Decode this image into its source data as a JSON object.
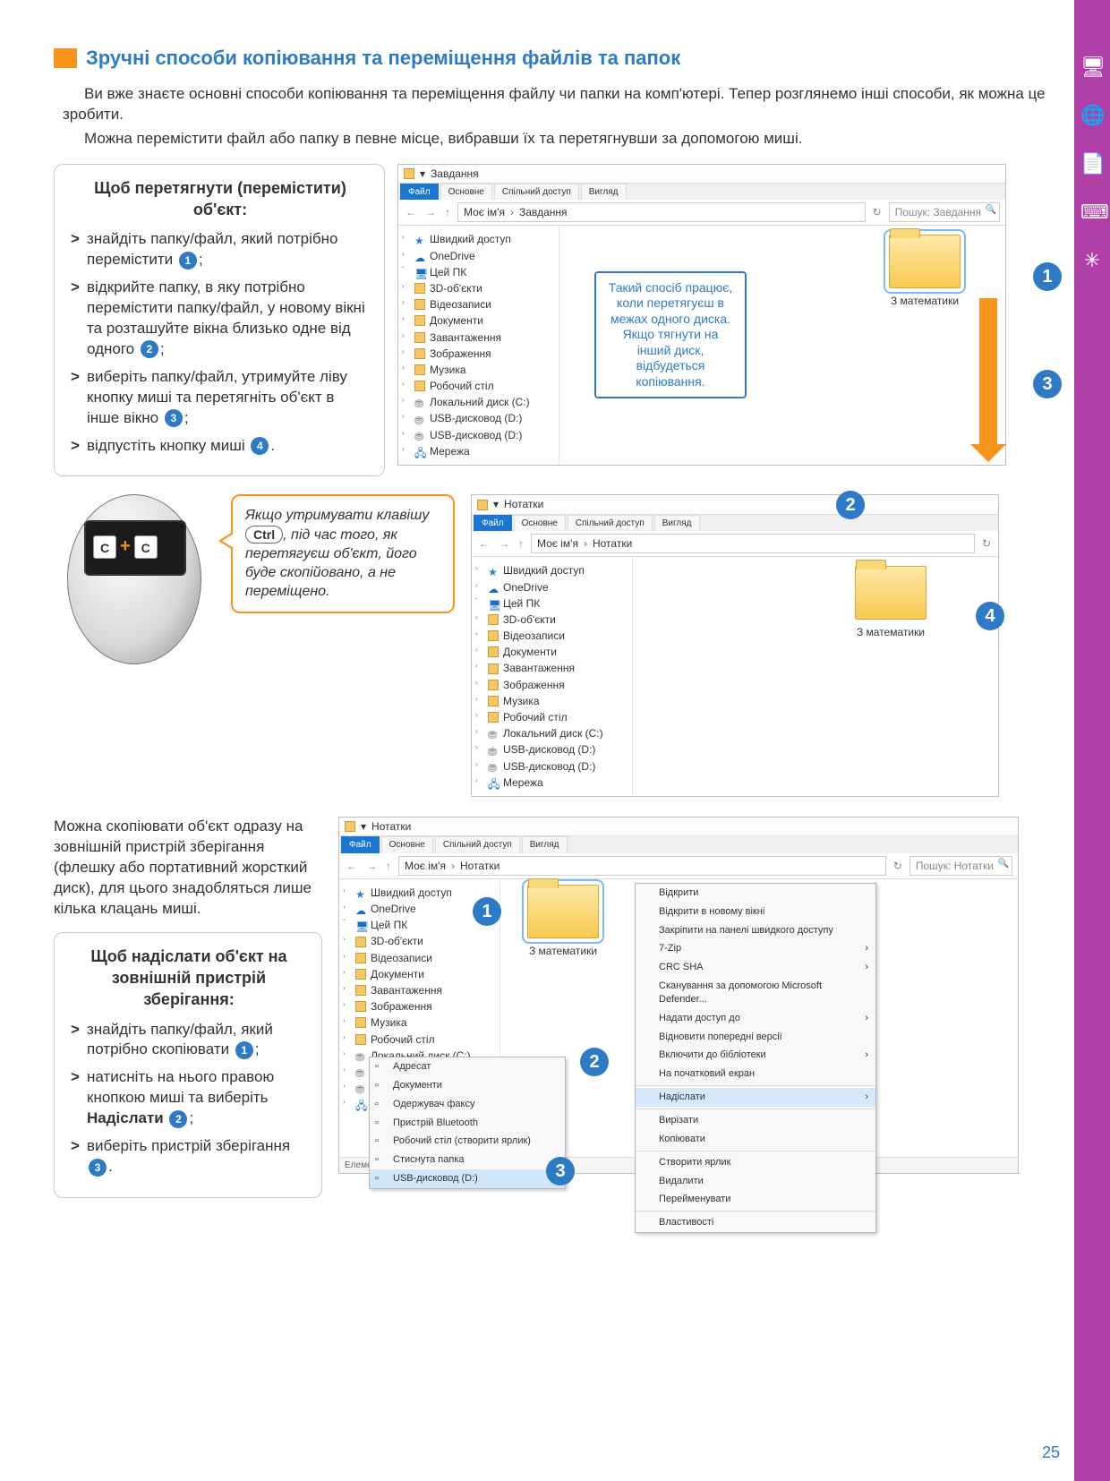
{
  "heading": "Зручні способи копіювання та переміщення файлів та папок",
  "intro": [
    "Ви вже знаєте основні способи копіювання та переміщення файлу чи папки на комп'ютері. Тепер розглянемо інші способи, як можна це зробити.",
    "Можна перемістити файл або папку в певне місце, вибравши їх та перетягнувши за допомогою миші."
  ],
  "instr1": {
    "title": "Щоб перетягнути (перемістити) об'єкт:",
    "items": [
      {
        "t": "знайдіть папку/файл, який потрібно перемістити",
        "n": "1",
        "tail": ";"
      },
      {
        "t": "відкрийте папку, в яку потрібно перемістити папку/файл, у новому вікні та розташуйте вікна близько одне від одного",
        "n": "2",
        "tail": ";"
      },
      {
        "t": "виберіть папку/файл, утримуйте ліву кнопку миші та перетягніть об'єкт в інше вікно",
        "n": "3",
        "tail": ";"
      },
      {
        "t": "відпустіть кнопку миші",
        "n": "4",
        "tail": "."
      }
    ]
  },
  "callout1": "Такий спосіб працює, коли перетягуєш в межах одного диска. Якщо тягнути на інший диск, відбудеться копіювання.",
  "sidebar_items": [
    {
      "icon": "star",
      "label": "Швидкий доступ",
      "caret": ""
    },
    {
      "icon": "one",
      "label": "OneDrive",
      "caret": "›"
    },
    {
      "icon": "pc",
      "label": "Цей ПК",
      "caret": "ˇ"
    },
    {
      "icon": "fold",
      "label": "3D-об'єкти",
      "caret": "›"
    },
    {
      "icon": "fold",
      "label": "Відеозаписи",
      "caret": "›"
    },
    {
      "icon": "fold",
      "label": "Документи",
      "caret": "›"
    },
    {
      "icon": "fold",
      "label": "Завантаження",
      "caret": "›"
    },
    {
      "icon": "fold",
      "label": "Зображення",
      "caret": "›"
    },
    {
      "icon": "fold",
      "label": "Музика",
      "caret": "›"
    },
    {
      "icon": "fold",
      "label": "Робочий стіл",
      "caret": "›"
    },
    {
      "icon": "disk",
      "label": "Локальний диск (C:)",
      "caret": "›"
    },
    {
      "icon": "disk",
      "label": "USB-дисковод (D:)",
      "caret": "›"
    },
    {
      "icon": "disk",
      "label": "USB-дисковод (D:)",
      "caret": "›"
    },
    {
      "icon": "net",
      "label": "Мережа",
      "caret": "›"
    }
  ],
  "win1": {
    "title": "Завдання",
    "tabs": [
      "Файл",
      "Основне",
      "Спільний доступ",
      "Вигляд"
    ],
    "breadcrumb": [
      "Моє ім'я",
      "Завдання"
    ],
    "search": "Пошук: Завдання",
    "folder": "З математики"
  },
  "win2": {
    "title": "Нотатки",
    "tabs": [
      "Файл",
      "Основне",
      "Спільний доступ",
      "Вигляд"
    ],
    "breadcrumb": [
      "Моє ім'я",
      "Нотатки"
    ],
    "folder": "З математики"
  },
  "speech": {
    "pre": "Якщо утримувати клавішу ",
    "key": "Ctrl",
    "post": ", під час того, як перетягуєш об'єкт, його буде скопійовано, а не переміщено."
  },
  "para3": "Можна скопіювати об'єкт одразу на зовнішній пристрій зберігання (флешку або портативний жорсткий диск), для цього знадобляться лише кілька клацань миші.",
  "instr2": {
    "title": "Щоб надіслати об'єкт на зовнішній пристрій зберігання:",
    "items": [
      {
        "t": "знайдіть папку/файл, який потрібно скопіювати",
        "n": "1",
        "tail": ";"
      },
      {
        "t_pre": "натисніть на нього правою кнопкою миші та виберіть ",
        "bold": "Надіслати",
        "n": "2",
        "tail": ";"
      },
      {
        "t": "виберіть пристрій зберігання",
        "n": "3",
        "tail": "."
      }
    ]
  },
  "win3": {
    "title": "Нотатки",
    "tabs": [
      "Файл",
      "Основне",
      "Спільний доступ",
      "Вигляд"
    ],
    "breadcrumb": [
      "Моє ім'я",
      "Нотатки"
    ],
    "search": "Пошук: Нотатки",
    "folder": "З математики",
    "status": "Елементів: 1    Вибрано елементів: 1"
  },
  "ctx_menu": [
    {
      "label": "Відкрити"
    },
    {
      "label": "Відкрити в новому вікні"
    },
    {
      "label": "Закріпити на панелі швидкого доступу"
    },
    {
      "label": "7-Zip",
      "arrow": true
    },
    {
      "label": "CRC SHA",
      "arrow": true
    },
    {
      "label": "Сканування за допомогою Microsoft Defender..."
    },
    {
      "label": "Надати доступ до",
      "arrow": true
    },
    {
      "label": "Відновити попередні версії"
    },
    {
      "label": "Включити до бібліотеки",
      "arrow": true
    },
    {
      "label": "На початковий екран"
    },
    {
      "sep": true
    },
    {
      "label": "Надіслати",
      "arrow": true,
      "hl": true
    },
    {
      "sep": true
    },
    {
      "label": "Вирізати"
    },
    {
      "label": "Копіювати"
    },
    {
      "sep": true
    },
    {
      "label": "Створити ярлик"
    },
    {
      "label": "Видалити"
    },
    {
      "label": "Перейменувати"
    },
    {
      "sep": true
    },
    {
      "label": "Властивості"
    }
  ],
  "submenu": [
    {
      "label": "Адресат"
    },
    {
      "label": "Документи"
    },
    {
      "label": "Одержувач факсу"
    },
    {
      "label": "Пристрій Bluetooth"
    },
    {
      "label": "Робочий стіл (створити ярлик)"
    },
    {
      "label": "Стиснута папка"
    },
    {
      "label": "USB-дисковод (D:)",
      "hl": true
    }
  ],
  "page_num": "25",
  "colors": {
    "accent": "#2f7ac6",
    "orange": "#f7941e",
    "magenta_bar": "#b03fa8"
  }
}
